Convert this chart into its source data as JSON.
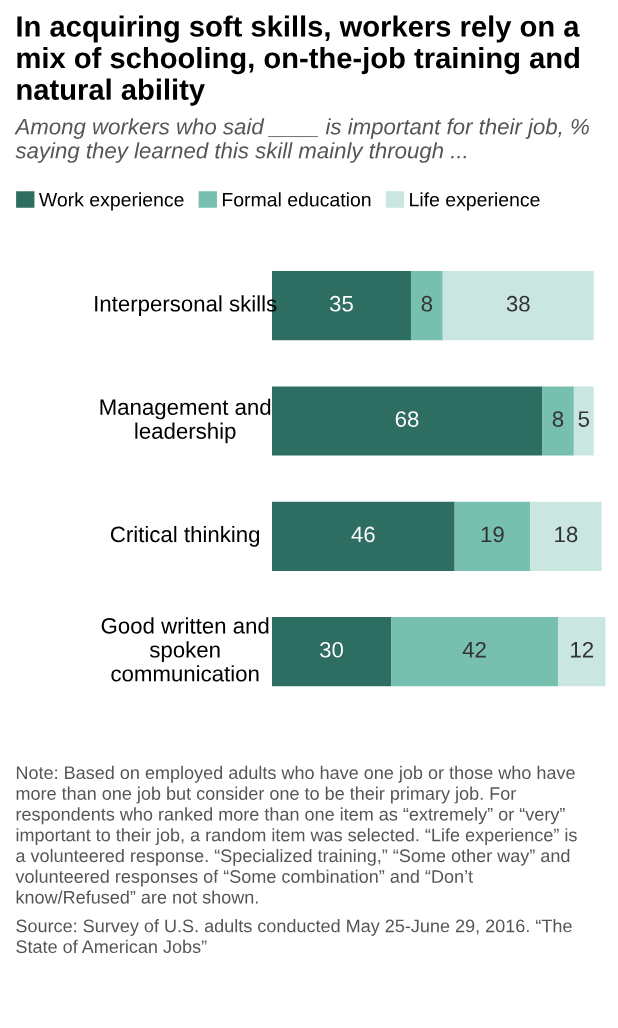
{
  "chart_data": {
    "type": "bar",
    "orientation": "horizontal",
    "stacked": true,
    "data_labels": true,
    "legend": "top",
    "title": "In acquiring soft skills, workers rely on a mix of schooling, on-the-job training and natural ability",
    "subtitle": "Among workers who said ____ is important for their job, % saying they learned this skill mainly through ...",
    "categories": [
      "Interpersonal skills",
      "Management and leadership",
      "Critical thinking",
      "Good written and spoken communication"
    ],
    "series": [
      {
        "name": "Work experience",
        "color": "#2e6e62",
        "values": [
          35,
          68,
          46,
          30
        ]
      },
      {
        "name": "Formal education",
        "color": "#77bfae",
        "values": [
          8,
          8,
          19,
          42
        ]
      },
      {
        "name": "Life experience",
        "color": "#c9e6e1",
        "values": [
          38,
          5,
          18,
          12
        ]
      }
    ],
    "annotations": [
      "Note: Based on employed adults who have one job or those who have more than one job but consider one to be their primary job. For respondents who ranked more than one item as “extremely” or “very” important to their job, a random item was selected. “Life experience” is a volunteered response. “Specialized training,” “Some other way” and volunteered responses of “Some combination” and “Don’t know/Refused” are not shown.",
      "Source: Survey of U.S. adults conducted May 25-June 29, 2016. “The State of American Jobs”"
    ]
  }
}
